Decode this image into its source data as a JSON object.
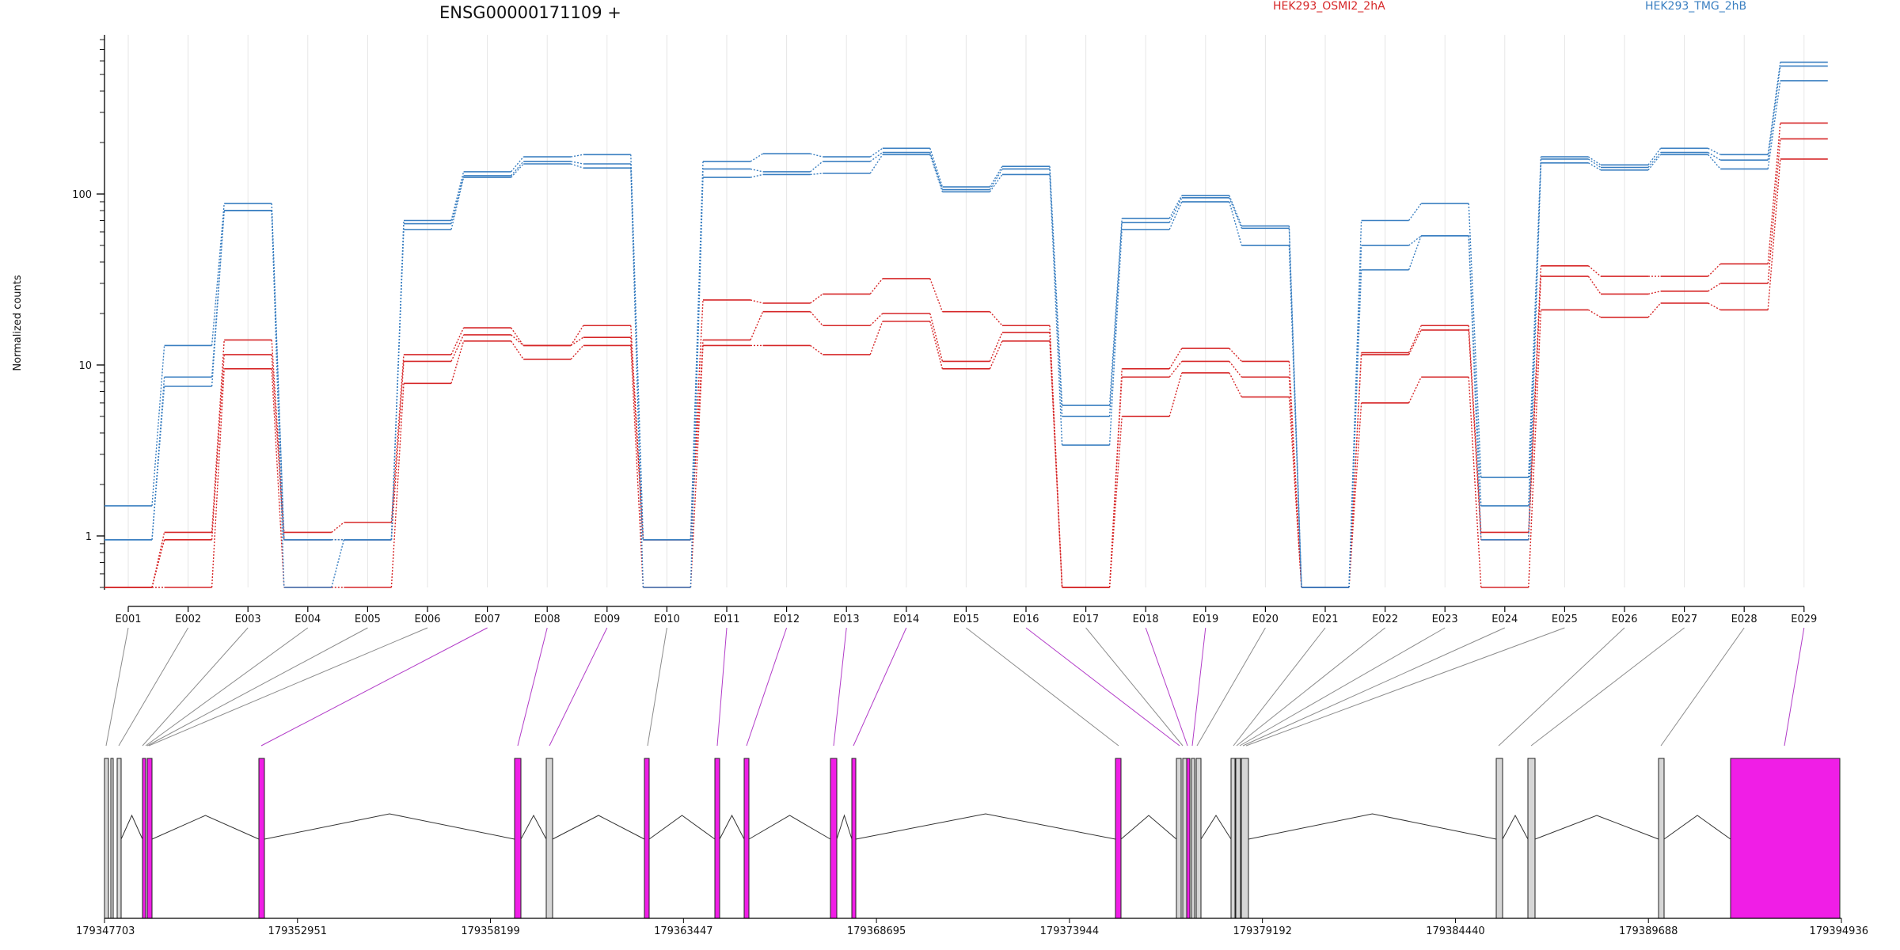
{
  "chart_data": {
    "type": "line",
    "title": "ENSG00000171109 +",
    "ylabel": "Normalized counts",
    "yscale": "log",
    "ylim": [
      0.5,
      800
    ],
    "yticks": [
      "1",
      "10",
      "100"
    ],
    "categories": [
      "E001",
      "E002",
      "E003",
      "E004",
      "E005",
      "E006",
      "E007",
      "E008",
      "E009",
      "E010",
      "E011",
      "E012",
      "E013",
      "E014",
      "E015",
      "E016",
      "E017",
      "E018",
      "E019",
      "E020",
      "E021",
      "E022",
      "E023",
      "E024",
      "E025",
      "E026",
      "E027",
      "E028",
      "E029"
    ],
    "conditions": [
      {
        "name": "HEK293_OSMI2_2hA",
        "color": "#d62728"
      },
      {
        "name": "HEK293_TMG_2hB",
        "color": "#3a7fc1"
      }
    ],
    "series": [
      {
        "name": "",
        "condition": 0,
        "values": [
          0.5,
          0.5,
          9.5,
          0.5,
          0.5,
          7.8,
          13.8,
          10.8,
          13,
          0.5,
          13,
          13,
          11.5,
          18,
          9.5,
          13.8,
          0.5,
          5,
          9,
          6.5,
          0.5,
          6,
          8.5,
          0.5,
          21,
          19,
          23,
          21,
          160
        ]
      },
      {
        "name": "",
        "condition": 0,
        "values": [
          0.5,
          0.95,
          11.5,
          0.95,
          0.95,
          10.5,
          15,
          13,
          14.5,
          0.95,
          14,
          20.5,
          17,
          20,
          10.5,
          15.5,
          0.5,
          8.5,
          10.5,
          8.5,
          0.5,
          11.5,
          16,
          0.95,
          33,
          26,
          27,
          30,
          210
        ]
      },
      {
        "name": "",
        "condition": 0,
        "values": [
          0.5,
          1.05,
          14,
          1.05,
          1.2,
          11.5,
          16.5,
          13,
          17,
          0.95,
          24,
          23,
          26,
          32,
          20.5,
          17,
          0.5,
          9.5,
          12.5,
          10.5,
          0.5,
          11.8,
          17,
          1.05,
          38,
          33,
          33,
          39,
          260
        ]
      },
      {
        "name": "",
        "condition": 1,
        "values": [
          0.95,
          7.5,
          80,
          0.5,
          0.95,
          62,
          125,
          150,
          142,
          0.5,
          125,
          130,
          132,
          170,
          103,
          130,
          3.4,
          62,
          90,
          50,
          0.5,
          36,
          57,
          0.95,
          152,
          138,
          170,
          140,
          460
        ]
      },
      {
        "name": "",
        "condition": 1,
        "values": [
          0.95,
          8.5,
          80,
          0.95,
          0.95,
          67,
          128,
          155,
          150,
          0.95,
          140,
          135,
          155,
          175,
          106,
          140,
          5,
          68,
          95,
          63,
          0.5,
          50,
          57,
          1.5,
          160,
          143,
          175,
          158,
          560
        ]
      },
      {
        "name": "",
        "condition": 1,
        "values": [
          1.5,
          13,
          88,
          0.95,
          0.95,
          70,
          135,
          165,
          170,
          0.95,
          155,
          172,
          165,
          185,
          110,
          145,
          5.8,
          72,
          98,
          65,
          0.5,
          70,
          88,
          2.2,
          165,
          148,
          185,
          170,
          590
        ]
      }
    ],
    "gene_model": {
      "coord_ticks": [
        "179347703",
        "179352951",
        "179358199",
        "179363447",
        "179368695",
        "179373944",
        "179379192",
        "179384440",
        "179389688",
        "179394936"
      ]
    }
  }
}
